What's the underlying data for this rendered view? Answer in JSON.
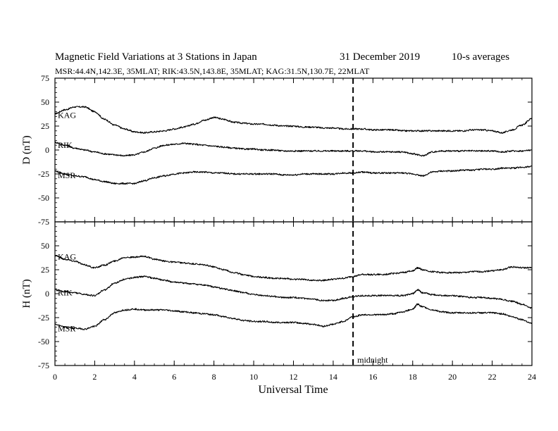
{
  "title": {
    "main": "Magnetic Field Variations at 3 Stations in Japan",
    "date": "31 December 2019",
    "averaging": "10-s averages"
  },
  "subtitle": "MSR:44.4N,142.3E, 35MLAT;  RIK:43.5N,143.8E, 35MLAT;  KAG:31.5N,130.7E, 22MLAT",
  "colors": {
    "line": "#000000",
    "background": "#ffffff"
  },
  "chart_data": [
    {
      "type": "line",
      "panel": "top",
      "ylabel": "D (nT)",
      "xlabel": "",
      "ylim": [
        -75,
        75
      ],
      "xlim": [
        0,
        24
      ],
      "yticks": [
        -75,
        -50,
        -25,
        0,
        25,
        50,
        75
      ],
      "xticks": [
        0,
        2,
        4,
        6,
        8,
        10,
        12,
        14,
        16,
        18,
        20,
        22,
        24
      ],
      "x": [
        0,
        0.5,
        1,
        1.5,
        2,
        2.5,
        3,
        3.5,
        4,
        4.5,
        5,
        5.5,
        6,
        6.5,
        7,
        7.5,
        8,
        8.5,
        9,
        9.5,
        10,
        10.5,
        11,
        11.5,
        12,
        12.5,
        13,
        13.5,
        14,
        14.5,
        15,
        15.5,
        16,
        16.5,
        17,
        17.5,
        18,
        18.5,
        19,
        19.5,
        20,
        20.5,
        21,
        21.5,
        22,
        22.5,
        23,
        23.5,
        24
      ],
      "series": [
        {
          "name": "KAG",
          "values": [
            38,
            42,
            45,
            45,
            40,
            32,
            26,
            22,
            19,
            18,
            19,
            20,
            22,
            24,
            27,
            31,
            34,
            32,
            29,
            28,
            27,
            27,
            26,
            25,
            25,
            24,
            24,
            23,
            23,
            22,
            22,
            22,
            21,
            21,
            21,
            20,
            20,
            20,
            20,
            20,
            20,
            20,
            21,
            21,
            20,
            18,
            21,
            26,
            33
          ]
        },
        {
          "name": "RIK",
          "values": [
            8,
            5,
            2,
            0,
            -2,
            -4,
            -5,
            -6,
            -5,
            -2,
            2,
            5,
            6,
            7,
            6,
            5,
            4,
            3,
            2,
            1,
            1,
            0,
            0,
            -1,
            -1,
            -1,
            -1,
            -1,
            -1,
            -1,
            -1,
            -1,
            -2,
            -2,
            -2,
            -2,
            -4,
            -6,
            -2,
            -1,
            -1,
            -1,
            -1,
            -1,
            -1,
            -2,
            -1,
            -1,
            0
          ]
        },
        {
          "name": "MSR",
          "values": [
            -22,
            -25,
            -27,
            -28,
            -31,
            -33,
            -35,
            -35,
            -35,
            -32,
            -29,
            -27,
            -25,
            -24,
            -23,
            -23,
            -24,
            -24,
            -25,
            -25,
            -25,
            -25,
            -25,
            -26,
            -26,
            -25,
            -25,
            -25,
            -25,
            -24,
            -24,
            -23,
            -24,
            -24,
            -24,
            -24,
            -25,
            -27,
            -23,
            -22,
            -22,
            -21,
            -21,
            -20,
            -20,
            -19,
            -19,
            -18,
            -17
          ]
        }
      ]
    },
    {
      "type": "line",
      "panel": "bottom",
      "ylabel": "H (nT)",
      "xlabel": "Universal Time",
      "ylim": [
        -75,
        75
      ],
      "xlim": [
        0,
        24
      ],
      "yticks": [
        -75,
        -50,
        -25,
        0,
        25,
        50
      ],
      "xticks": [
        0,
        2,
        4,
        6,
        8,
        10,
        12,
        14,
        16,
        18,
        20,
        22,
        24
      ],
      "annotation": {
        "label": "midnight",
        "x": 15
      },
      "x": [
        0,
        0.5,
        1,
        1.5,
        2,
        2.5,
        3,
        3.5,
        4,
        4.5,
        5,
        5.5,
        6,
        6.5,
        7,
        7.5,
        8,
        8.5,
        9,
        9.5,
        10,
        10.5,
        11,
        11.5,
        12,
        12.5,
        13,
        13.5,
        14,
        14.5,
        15,
        15.5,
        16,
        16.5,
        17,
        17.5,
        18,
        18.25,
        18.5,
        19,
        19.5,
        20,
        20.5,
        21,
        21.5,
        22,
        22.5,
        23,
        23.5,
        24
      ],
      "series": [
        {
          "name": "KAG",
          "values": [
            40,
            36,
            34,
            30,
            27,
            30,
            34,
            38,
            38,
            39,
            36,
            34,
            33,
            32,
            31,
            30,
            28,
            25,
            22,
            20,
            18,
            17,
            16,
            16,
            15,
            15,
            14,
            14,
            15,
            16,
            18,
            20,
            20,
            20,
            21,
            22,
            24,
            27,
            25,
            23,
            22,
            22,
            22,
            23,
            23,
            24,
            25,
            28,
            27,
            27
          ]
        },
        {
          "name": "RIK",
          "values": [
            4,
            2,
            1,
            -1,
            -2,
            4,
            11,
            15,
            17,
            18,
            16,
            14,
            12,
            11,
            10,
            9,
            7,
            5,
            3,
            1,
            -1,
            -2,
            -3,
            -4,
            -4,
            -5,
            -6,
            -7,
            -7,
            -5,
            -3,
            -2,
            -2,
            -2,
            -2,
            -2,
            0,
            4,
            1,
            -1,
            -2,
            -2,
            -3,
            -4,
            -4,
            -5,
            -6,
            -8,
            -11,
            -15
          ]
        },
        {
          "name": "MSR",
          "values": [
            -32,
            -35,
            -36,
            -37,
            -34,
            -27,
            -20,
            -17,
            -16,
            -17,
            -17,
            -17,
            -18,
            -19,
            -20,
            -21,
            -22,
            -24,
            -26,
            -28,
            -29,
            -29,
            -30,
            -30,
            -30,
            -31,
            -32,
            -34,
            -32,
            -29,
            -24,
            -22,
            -22,
            -22,
            -21,
            -19,
            -16,
            -11,
            -14,
            -17,
            -19,
            -20,
            -20,
            -20,
            -20,
            -20,
            -21,
            -24,
            -27,
            -31
          ]
        }
      ]
    }
  ]
}
